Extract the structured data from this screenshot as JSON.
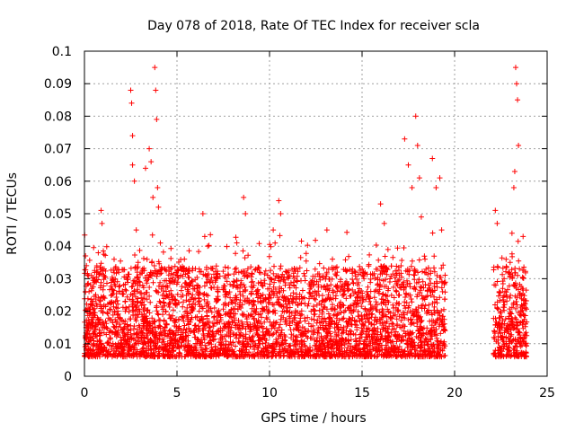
{
  "chart_data": {
    "type": "scatter",
    "title": "Day 078 of 2018, Rate Of TEC Index for receiver scla",
    "xlabel": "GPS time / hours",
    "ylabel": "ROTI / TECUs",
    "xlim": [
      0,
      25
    ],
    "ylim": [
      0,
      0.1
    ],
    "x_ticks": [
      0,
      5,
      10,
      15,
      20,
      25
    ],
    "x_tick_labels": [
      "0",
      "5",
      "10",
      "15",
      "20",
      "25"
    ],
    "y_ticks": [
      0,
      0.01,
      0.02,
      0.03,
      0.04,
      0.05,
      0.06,
      0.07,
      0.08,
      0.09,
      0.1
    ],
    "y_tick_labels": [
      "0",
      "0.01",
      "0.02",
      "0.03",
      "0.04",
      "0.05",
      "0.06",
      "0.07",
      "0.08",
      "0.09",
      "0.1"
    ],
    "grid": true,
    "marker": "plus",
    "color": "#ff0000",
    "series": [
      {
        "name": "ROTI",
        "points": [
          [
            0.1,
            0.015
          ],
          [
            0.2,
            0.021
          ],
          [
            0.3,
            0.012
          ],
          [
            0.4,
            0.027
          ],
          [
            0.5,
            0.01
          ],
          [
            0.7,
            0.018
          ],
          [
            0.9,
            0.051
          ],
          [
            0.95,
            0.047
          ],
          [
            1.0,
            0.033
          ],
          [
            1.1,
            0.024
          ],
          [
            1.2,
            0.008
          ],
          [
            1.4,
            0.014
          ],
          [
            1.6,
            0.029
          ],
          [
            1.8,
            0.02
          ],
          [
            2.0,
            0.011
          ],
          [
            2.2,
            0.017
          ],
          [
            2.5,
            0.088
          ],
          [
            2.55,
            0.084
          ],
          [
            2.6,
            0.074
          ],
          [
            2.6,
            0.065
          ],
          [
            2.7,
            0.06
          ],
          [
            2.8,
            0.045
          ],
          [
            2.9,
            0.035
          ],
          [
            3.0,
            0.028
          ],
          [
            3.1,
            0.019
          ],
          [
            3.2,
            0.012
          ],
          [
            3.3,
            0.064
          ],
          [
            3.5,
            0.07
          ],
          [
            3.6,
            0.066
          ],
          [
            3.7,
            0.055
          ],
          [
            3.8,
            0.095
          ],
          [
            3.85,
            0.088
          ],
          [
            3.9,
            0.079
          ],
          [
            3.95,
            0.058
          ],
          [
            4.0,
            0.052
          ],
          [
            4.1,
            0.041
          ],
          [
            4.2,
            0.033
          ],
          [
            4.3,
            0.025
          ],
          [
            4.4,
            0.016
          ],
          [
            4.5,
            0.01
          ],
          [
            4.6,
            0.006
          ],
          [
            4.8,
            0.013
          ],
          [
            5.0,
            0.022
          ],
          [
            5.2,
            0.031
          ],
          [
            5.4,
            0.036
          ],
          [
            5.6,
            0.018
          ],
          [
            5.8,
            0.009
          ],
          [
            6.0,
            0.012
          ],
          [
            6.2,
            0.02
          ],
          [
            6.4,
            0.05
          ],
          [
            6.5,
            0.043
          ],
          [
            6.6,
            0.029
          ],
          [
            6.8,
            0.015
          ],
          [
            7.0,
            0.007
          ],
          [
            7.3,
            0.019
          ],
          [
            7.6,
            0.025
          ],
          [
            7.9,
            0.014
          ],
          [
            8.2,
            0.032
          ],
          [
            8.4,
            0.022
          ],
          [
            8.6,
            0.055
          ],
          [
            8.7,
            0.05
          ],
          [
            8.8,
            0.024
          ],
          [
            9.0,
            0.011
          ],
          [
            9.3,
            0.017
          ],
          [
            9.6,
            0.028
          ],
          [
            9.8,
            0.013
          ],
          [
            10.0,
            0.009
          ],
          [
            10.2,
            0.045
          ],
          [
            10.3,
            0.041
          ],
          [
            10.5,
            0.054
          ],
          [
            10.6,
            0.05
          ],
          [
            10.7,
            0.02
          ],
          [
            10.9,
            0.016
          ],
          [
            11.2,
            0.023
          ],
          [
            11.5,
            0.012
          ],
          [
            11.8,
            0.008
          ],
          [
            12.1,
            0.014
          ],
          [
            12.4,
            0.019
          ],
          [
            12.7,
            0.011
          ],
          [
            12.9,
            0.007
          ],
          [
            13.1,
            0.045
          ],
          [
            13.2,
            0.027
          ],
          [
            13.4,
            0.036
          ],
          [
            13.6,
            0.031
          ],
          [
            13.8,
            0.021
          ],
          [
            14.0,
            0.015
          ],
          [
            14.3,
            0.01
          ],
          [
            14.6,
            0.017
          ],
          [
            14.9,
            0.024
          ],
          [
            15.2,
            0.013
          ],
          [
            15.5,
            0.019
          ],
          [
            15.8,
            0.011
          ],
          [
            16.0,
            0.053
          ],
          [
            16.2,
            0.047
          ],
          [
            16.4,
            0.039
          ],
          [
            16.5,
            0.029
          ],
          [
            16.7,
            0.021
          ],
          [
            16.9,
            0.016
          ],
          [
            17.1,
            0.011
          ],
          [
            17.3,
            0.073
          ],
          [
            17.5,
            0.065
          ],
          [
            17.7,
            0.058
          ],
          [
            17.9,
            0.08
          ],
          [
            18.0,
            0.071
          ],
          [
            18.1,
            0.061
          ],
          [
            18.2,
            0.049
          ],
          [
            18.4,
            0.036
          ],
          [
            18.6,
            0.028
          ],
          [
            18.8,
            0.067
          ],
          [
            19.0,
            0.058
          ],
          [
            19.2,
            0.061
          ],
          [
            19.3,
            0.045
          ],
          [
            19.35,
            0.026
          ],
          [
            19.4,
            0.014
          ],
          [
            22.2,
            0.051
          ],
          [
            22.3,
            0.047
          ],
          [
            22.4,
            0.018
          ],
          [
            22.5,
            0.012
          ],
          [
            22.6,
            0.027
          ],
          [
            22.7,
            0.022
          ],
          [
            22.8,
            0.015
          ],
          [
            22.9,
            0.009
          ],
          [
            23.0,
            0.035
          ],
          [
            23.1,
            0.044
          ],
          [
            23.2,
            0.058
          ],
          [
            23.25,
            0.063
          ],
          [
            23.3,
            0.095
          ],
          [
            23.35,
            0.09
          ],
          [
            23.4,
            0.085
          ],
          [
            23.45,
            0.071
          ],
          [
            23.5,
            0.033
          ],
          [
            23.6,
            0.02
          ],
          [
            23.7,
            0.043
          ],
          [
            23.8,
            0.013
          ]
        ]
      }
    ]
  }
}
